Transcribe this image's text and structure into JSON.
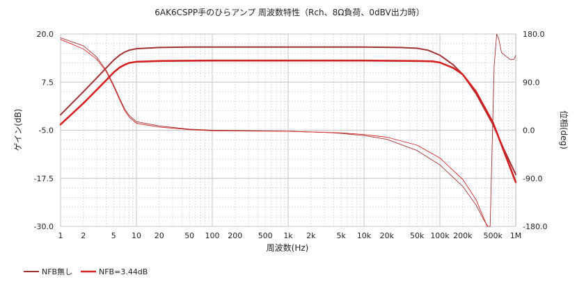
{
  "chart_data": {
    "type": "line",
    "title": "6AK6CSPP手のひらアンプ 周波数特性（Rch、8Ω負荷、0dBV出力時）",
    "xlabel": "周波数(Hz)",
    "ylabel": "ゲイン(dB)",
    "y2label": "位相(deg)",
    "x_scale": "log",
    "xlim": [
      1,
      1000000
    ],
    "ylim": [
      -30,
      20
    ],
    "y2lim": [
      -180,
      180
    ],
    "grid": true,
    "legend_position": "bottom-left",
    "x_ticks": [
      {
        "value": 1,
        "label": "1"
      },
      {
        "value": 2,
        "label": "2"
      },
      {
        "value": 5,
        "label": "5"
      },
      {
        "value": 10,
        "label": "10"
      },
      {
        "value": 20,
        "label": "20"
      },
      {
        "value": 50,
        "label": "50"
      },
      {
        "value": 100,
        "label": "100"
      },
      {
        "value": 200,
        "label": "200"
      },
      {
        "value": 500,
        "label": "500"
      },
      {
        "value": 1000,
        "label": "1k"
      },
      {
        "value": 2000,
        "label": "2k"
      },
      {
        "value": 5000,
        "label": "5k"
      },
      {
        "value": 10000,
        "label": "10k"
      },
      {
        "value": 20000,
        "label": "20k"
      },
      {
        "value": 50000,
        "label": "50k"
      },
      {
        "value": 100000,
        "label": "100k"
      },
      {
        "value": 200000,
        "label": "200k"
      },
      {
        "value": 500000,
        "label": "500k"
      },
      {
        "value": 1000000,
        "label": "1M"
      }
    ],
    "y_ticks": [
      {
        "value": 20,
        "label": "20.0"
      },
      {
        "value": 7.5,
        "label": "7.5"
      },
      {
        "value": -5,
        "label": "-5.0"
      },
      {
        "value": -17.5,
        "label": "-17.5"
      },
      {
        "value": -30,
        "label": "-30.0"
      }
    ],
    "y2_ticks": [
      {
        "value": 180,
        "label": "180.0"
      },
      {
        "value": 90,
        "label": "90.0"
      },
      {
        "value": 0,
        "label": "0.0"
      },
      {
        "value": -90,
        "label": "-90.0"
      },
      {
        "value": -180,
        "label": "-180.0"
      }
    ],
    "series": [
      {
        "name": "NFB無し",
        "kind": "gain",
        "axis": "y",
        "color": "#a23030",
        "points": [
          [
            1,
            -1.0
          ],
          [
            2,
            5.0
          ],
          [
            3,
            8.6
          ],
          [
            4,
            11.2
          ],
          [
            5,
            13.2
          ],
          [
            6,
            14.5
          ],
          [
            7,
            15.3
          ],
          [
            8,
            15.8
          ],
          [
            10,
            16.2
          ],
          [
            20,
            16.5
          ],
          [
            50,
            16.6
          ],
          [
            100,
            16.6
          ],
          [
            1000,
            16.6
          ],
          [
            10000,
            16.6
          ],
          [
            30000,
            16.5
          ],
          [
            50000,
            16.3
          ],
          [
            70000,
            15.8
          ],
          [
            100000,
            14.5
          ],
          [
            150000,
            12.0
          ],
          [
            200000,
            9.5
          ],
          [
            300000,
            4.5
          ],
          [
            500000,
            -3.5
          ],
          [
            700000,
            -10.0
          ],
          [
            1000000,
            -16.5
          ]
        ]
      },
      {
        "name": "NFB=3.44dB",
        "kind": "gain",
        "axis": "y",
        "color": "#d42020",
        "points": [
          [
            1,
            -3.5
          ],
          [
            2,
            2.0
          ],
          [
            3,
            5.5
          ],
          [
            4,
            8.0
          ],
          [
            5,
            10.0
          ],
          [
            6,
            11.3
          ],
          [
            7,
            12.0
          ],
          [
            8,
            12.5
          ],
          [
            10,
            12.8
          ],
          [
            20,
            13.0
          ],
          [
            100,
            13.1
          ],
          [
            1000,
            13.1
          ],
          [
            10000,
            13.1
          ],
          [
            50000,
            13.0
          ],
          [
            80000,
            12.9
          ],
          [
            100000,
            12.6
          ],
          [
            150000,
            11.2
          ],
          [
            200000,
            9.5
          ],
          [
            300000,
            5.0
          ],
          [
            500000,
            -3.0
          ],
          [
            700000,
            -10.5
          ],
          [
            1000000,
            -18.5
          ]
        ]
      },
      {
        "name": "NFB無し",
        "kind": "phase",
        "axis": "y2",
        "color": "#a23030",
        "points": [
          [
            1,
            173
          ],
          [
            2,
            158
          ],
          [
            3,
            137
          ],
          [
            4,
            112
          ],
          [
            5,
            85
          ],
          [
            6,
            60
          ],
          [
            7,
            40
          ],
          [
            8,
            28
          ],
          [
            10,
            16
          ],
          [
            20,
            8
          ],
          [
            50,
            2
          ],
          [
            100,
            0
          ],
          [
            1000,
            -2
          ],
          [
            3000,
            -4
          ],
          [
            5000,
            -6
          ],
          [
            10000,
            -10
          ],
          [
            20000,
            -17
          ],
          [
            50000,
            -38
          ],
          [
            100000,
            -65
          ],
          [
            200000,
            -105
          ],
          [
            300000,
            -140
          ],
          [
            380000,
            -168
          ],
          [
            430000,
            -180
          ],
          [
            460000,
            -180
          ],
          [
            480000,
            -70
          ],
          [
            520000,
            120
          ],
          [
            560000,
            180
          ],
          [
            600000,
            170
          ],
          [
            650000,
            145
          ],
          [
            750000,
            138
          ],
          [
            850000,
            132
          ],
          [
            950000,
            133
          ],
          [
            1000000,
            140
          ]
        ]
      },
      {
        "name": "NFB=3.44dB",
        "kind": "phase",
        "axis": "y2",
        "color": "#d42020",
        "points": [
          [
            1,
            170
          ],
          [
            2,
            152
          ],
          [
            3,
            133
          ],
          [
            4,
            110
          ],
          [
            5,
            82
          ],
          [
            6,
            57
          ],
          [
            7,
            37
          ],
          [
            8,
            25
          ],
          [
            10,
            13
          ],
          [
            20,
            6
          ],
          [
            50,
            1
          ],
          [
            100,
            -1
          ],
          [
            1000,
            -2
          ],
          [
            3000,
            -4
          ],
          [
            5000,
            -5
          ],
          [
            10000,
            -8
          ],
          [
            20000,
            -13
          ],
          [
            50000,
            -28
          ],
          [
            100000,
            -52
          ],
          [
            200000,
            -92
          ],
          [
            300000,
            -130
          ],
          [
            380000,
            -165
          ],
          [
            420000,
            -180
          ]
        ]
      }
    ]
  }
}
